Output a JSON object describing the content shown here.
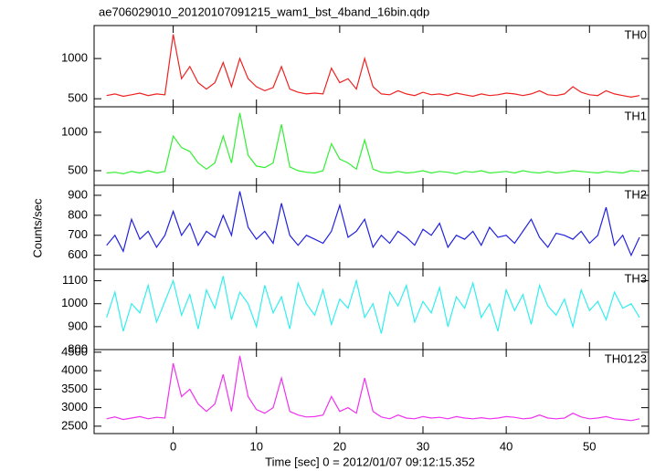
{
  "chart_data": {
    "type": "line",
    "title": "ae706029010_20120107091215_wam1_bst_4band_16bin.qdp",
    "x_label": "Time [sec] 0 = 2012/01/07 09:12:15.352",
    "y_label": "Counts/sec",
    "xlim": [
      -9.5,
      57.1
    ],
    "xticks": [
      0,
      10,
      20,
      30,
      40,
      50
    ],
    "x": [
      -8,
      -7,
      -6,
      -5,
      -4,
      -3,
      -2,
      -1,
      0,
      1,
      2,
      3,
      4,
      5,
      6,
      7,
      8,
      9,
      10,
      11,
      12,
      13,
      14,
      15,
      16,
      17,
      18,
      19,
      20,
      21,
      22,
      23,
      24,
      25,
      26,
      27,
      28,
      29,
      30,
      31,
      32,
      33,
      34,
      35,
      36,
      37,
      38,
      39,
      40,
      41,
      42,
      43,
      44,
      45,
      46,
      47,
      48,
      49,
      50,
      51,
      52,
      53,
      54,
      55,
      56
    ],
    "series": [
      {
        "name": "TH0",
        "color": "#ee2222",
        "ylim": [
          400,
          1410
        ],
        "yticks": [
          500,
          1000
        ],
        "values": [
          540,
          560,
          530,
          550,
          570,
          540,
          560,
          550,
          1300,
          750,
          900,
          700,
          620,
          700,
          950,
          650,
          1000,
          750,
          650,
          600,
          640,
          900,
          620,
          580,
          560,
          570,
          560,
          880,
          700,
          750,
          620,
          1000,
          650,
          560,
          550,
          600,
          560,
          540,
          580,
          550,
          560,
          540,
          570,
          550,
          530,
          560,
          540,
          550,
          570,
          560,
          540,
          560,
          600,
          550,
          540,
          560,
          650,
          580,
          550,
          540,
          600,
          560,
          540,
          520,
          540
        ]
      },
      {
        "name": "TH1",
        "color": "#33ee33",
        "ylim": [
          310,
          1330
        ],
        "yticks": [
          500,
          1000
        ],
        "values": [
          470,
          480,
          460,
          490,
          470,
          500,
          470,
          490,
          950,
          800,
          750,
          600,
          520,
          600,
          950,
          600,
          1250,
          700,
          560,
          540,
          600,
          1100,
          550,
          500,
          480,
          470,
          500,
          850,
          650,
          600,
          520,
          900,
          520,
          480,
          470,
          490,
          470,
          480,
          500,
          470,
          490,
          480,
          460,
          490,
          480,
          500,
          470,
          480,
          490,
          470,
          500,
          480,
          470,
          490,
          470,
          480,
          500,
          490,
          480,
          470,
          490,
          480,
          470,
          500,
          490
        ]
      },
      {
        "name": "TH2",
        "color": "#2222dd",
        "ylim": [
          530,
          950
        ],
        "yticks": [
          600,
          700,
          800,
          900
        ],
        "values": [
          650,
          700,
          620,
          780,
          680,
          720,
          640,
          700,
          820,
          700,
          760,
          650,
          720,
          690,
          800,
          700,
          920,
          740,
          680,
          720,
          660,
          860,
          700,
          650,
          700,
          680,
          660,
          720,
          850,
          690,
          720,
          780,
          640,
          700,
          660,
          720,
          690,
          650,
          730,
          700,
          760,
          640,
          700,
          680,
          720,
          650,
          740,
          690,
          700,
          660,
          720,
          780,
          690,
          640,
          710,
          700,
          680,
          720,
          660,
          700,
          840,
          650,
          700,
          600,
          690
        ]
      },
      {
        "name": "TH3",
        "color": "#33eeee",
        "ylim": [
          800,
          1150
        ],
        "yticks": [
          800,
          900,
          1000,
          1100
        ],
        "values": [
          940,
          1050,
          880,
          1000,
          960,
          1080,
          920,
          1010,
          1100,
          950,
          1040,
          890,
          1060,
          980,
          1120,
          930,
          1050,
          1000,
          900,
          1080,
          960,
          1030,
          890,
          1090,
          1000,
          950,
          1060,
          910,
          1020,
          980,
          1100,
          940,
          1000,
          870,
          1050,
          990,
          1080,
          920,
          1010,
          960,
          1070,
          900,
          1030,
          980,
          1090,
          940,
          1000,
          880,
          1060,
          970,
          1040,
          910,
          1080,
          990,
          950,
          1020,
          900,
          1060,
          970,
          1010,
          930,
          1050,
          980,
          1000,
          940
        ]
      },
      {
        "name": "TH0123",
        "color": "#ee33ee",
        "ylim": [
          2300,
          4570
        ],
        "yticks": [
          2500,
          3000,
          3500,
          4000,
          4500
        ],
        "values": [
          2700,
          2750,
          2680,
          2720,
          2760,
          2700,
          2740,
          2720,
          4200,
          3300,
          3500,
          3100,
          2900,
          3100,
          3900,
          2900,
          4400,
          3300,
          2950,
          2850,
          3000,
          3800,
          2900,
          2800,
          2750,
          2760,
          2800,
          3300,
          2900,
          3000,
          2850,
          3800,
          2900,
          2750,
          2700,
          2800,
          2720,
          2700,
          2760,
          2720,
          2740,
          2700,
          2760,
          2720,
          2700,
          2730,
          2700,
          2720,
          2760,
          2740,
          2700,
          2720,
          2800,
          2720,
          2700,
          2720,
          2850,
          2750,
          2700,
          2720,
          2760,
          2700,
          2680,
          2650,
          2700
        ]
      }
    ]
  }
}
